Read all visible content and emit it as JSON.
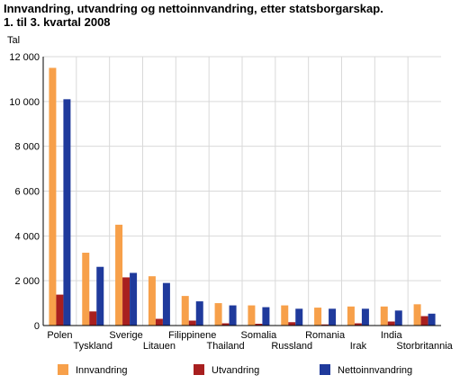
{
  "chart_data": {
    "type": "bar",
    "title": "Innvandring, utvandring og nettoinnvandring, etter statsborgarskap.",
    "subtitle": "1. til 3. kvartal 2008",
    "ylabel": "Tal",
    "xlabel": "",
    "ylim": [
      0,
      12000
    ],
    "yticks": [
      0,
      2000,
      4000,
      6000,
      8000,
      10000,
      12000
    ],
    "ytick_labels": [
      "0",
      "2 000",
      "4 000",
      "6 000",
      "8 000",
      "10 000",
      "12 000"
    ],
    "grid": true,
    "legend_position": "bottom",
    "categories": [
      "Polen",
      "Tyskland",
      "Sverige",
      "Litauen",
      "Filippinene",
      "Thailand",
      "Somalia",
      "Russland",
      "Romania",
      "Irak",
      "India",
      "Storbritannia"
    ],
    "series": [
      {
        "name": "Innvandring",
        "color": "#f7a04a",
        "values": [
          11500,
          3250,
          4500,
          2200,
          1320,
          1000,
          900,
          900,
          800,
          850,
          850,
          950
        ]
      },
      {
        "name": "Utvandring",
        "color": "#a81f1f",
        "values": [
          1380,
          630,
          2150,
          300,
          220,
          100,
          80,
          150,
          50,
          100,
          180,
          420
        ]
      },
      {
        "name": "Nettoinnvandring",
        "color": "#1f3a9c",
        "values": [
          10100,
          2620,
          2350,
          1900,
          1080,
          900,
          820,
          750,
          750,
          750,
          670,
          530
        ]
      }
    ]
  }
}
